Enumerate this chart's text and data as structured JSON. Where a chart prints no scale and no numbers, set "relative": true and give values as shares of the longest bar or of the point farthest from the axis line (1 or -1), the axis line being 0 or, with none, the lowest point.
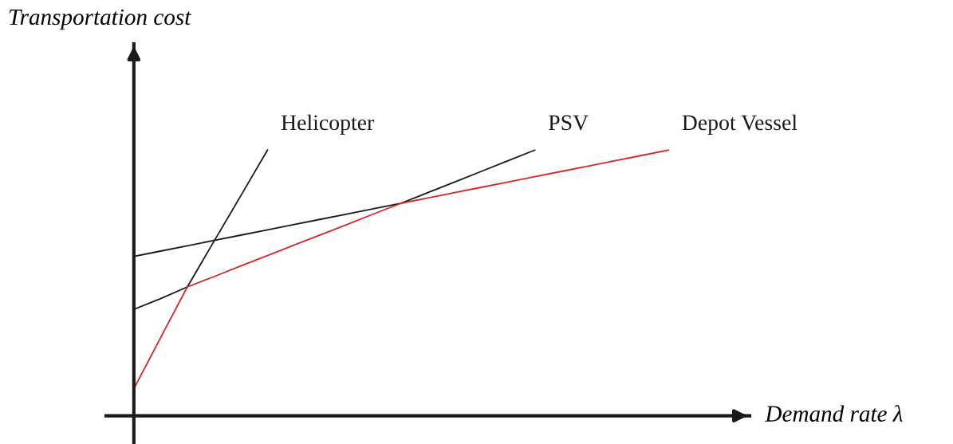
{
  "chart_data": {
    "type": "line",
    "relative": true,
    "xlabel": "Demand rate λ",
    "annotations": [
      "Transportation cost"
    ],
    "categories": [
      null,
      null,
      null,
      null,
      null,
      null,
      null,
      null,
      null,
      null,
      null,
      null,
      null,
      null,
      null,
      null,
      null,
      null,
      null,
      null,
      null
    ],
    "series": [
      {
        "name": "Helicopter",
        "color": "#1a1a1a",
        "values": [
          null,
          null,
          0.485,
          0.657,
          0.828,
          1.0,
          null,
          null,
          null,
          null,
          null,
          null,
          null,
          null,
          null,
          null,
          null,
          null,
          null,
          null,
          null
        ]
      },
      {
        "name": "PSV",
        "color": "#1a1a1a",
        "values": [
          0.401,
          0.441,
          0.485,
          null,
          null,
          null,
          null,
          null,
          null,
          null,
          0.8,
          0.84,
          0.88,
          0.92,
          0.96,
          1.0,
          null,
          null,
          null,
          null,
          null
        ]
      },
      {
        "color": "#1a1a1a",
        "values": [
          0.6,
          0.62,
          0.64,
          0.66,
          0.68,
          0.7,
          0.72,
          0.74,
          0.76,
          0.78,
          0.8,
          null,
          null,
          null,
          null,
          null,
          null,
          null,
          null,
          null,
          null
        ]
      },
      {
        "name": "Depot Vessel",
        "color": "#d62728",
        "values": [
          0.102,
          0.294,
          0.485,
          0.524,
          0.564,
          0.603,
          0.643,
          0.682,
          0.721,
          0.761,
          0.8,
          0.82,
          0.84,
          0.86,
          0.88,
          0.9,
          0.92,
          0.94,
          0.96,
          0.98,
          1.0
        ]
      }
    ]
  }
}
